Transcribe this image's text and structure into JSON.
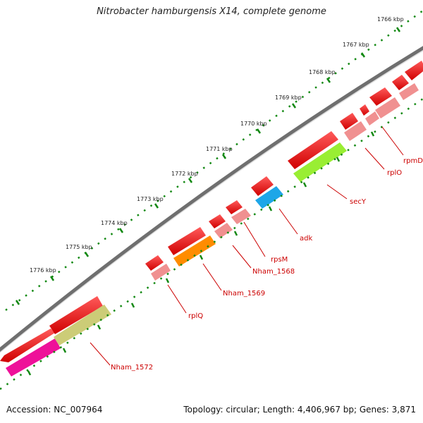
{
  "title": "Nitrobacter hamburgensis X14, complete genome",
  "footer": {
    "accession": "Accession: NC_007964",
    "summary": "Topology: circular; Length: 4,406,967 bp; Genes: 3,871"
  },
  "kbp_labels": [
    "1766 kbp",
    "1767 kbp",
    "1768 kbp",
    "1769 kbp",
    "1770 kbp",
    "1771 kbp",
    "1772 kbp",
    "1773 kbp",
    "1774 kbp",
    "1775 kbp",
    "1776 kbp"
  ],
  "gene_labels": [
    "rpmD",
    "rplO",
    "secY",
    "adk",
    "rpsM",
    "Nham_1568",
    "Nham_1569",
    "rplQ",
    "Nham_1572"
  ],
  "colors": {
    "cds": "#ff0000",
    "backbone": "#7a7a7a",
    "tick": "#118811",
    "label": "#cc0000",
    "secY": "#99ee33",
    "adk": "#1ea6e8",
    "Nham_1569": "#ff8c00",
    "Nham_1572_top": "#cccc77",
    "Nham_1572_bottom": "#ee1199",
    "cog": "#f09090"
  }
}
